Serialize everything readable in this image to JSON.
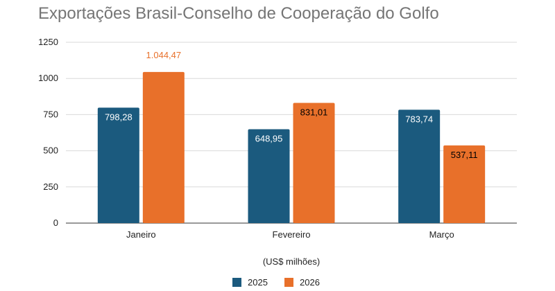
{
  "chart_data": {
    "type": "bar",
    "title": "Exportações Brasil-Conselho de Cooperação do Golfo",
    "xlabel": "(US$ milhões)",
    "ylabel": "",
    "categories": [
      "Janeiro",
      "Fevereiro",
      "Março"
    ],
    "series": [
      {
        "name": "2025",
        "color": "#1b5a7e",
        "label_color": "#ffffff",
        "values": [
          798.28,
          648.95,
          783.74
        ],
        "labels": [
          "798,28",
          "648,95",
          "783,74"
        ]
      },
      {
        "name": "2026",
        "color": "#e8702a",
        "label_color": "#000000",
        "values": [
          1044.47,
          831.01,
          537.11
        ],
        "labels": [
          "1.044,47",
          "831,01",
          "537,11"
        ]
      }
    ],
    "outside_label_color": "#e8702a",
    "ylim": [
      0,
      1250
    ],
    "yticks": [
      0,
      250,
      500,
      750,
      1000,
      1250
    ],
    "grid": true,
    "legend": "bottom"
  }
}
